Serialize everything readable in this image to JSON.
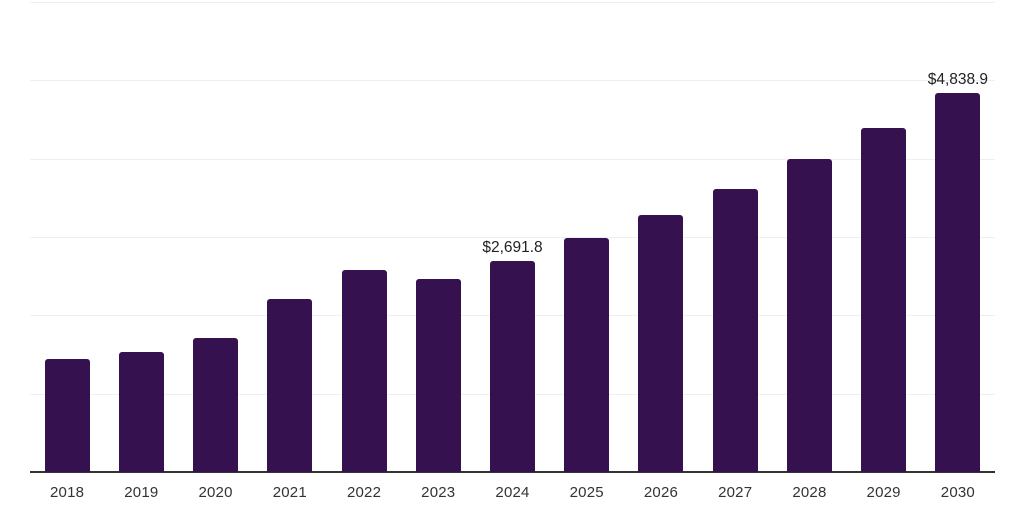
{
  "chart_data": {
    "type": "bar",
    "title": "",
    "xlabel": "",
    "ylabel": "",
    "categories": [
      "2018",
      "2019",
      "2020",
      "2021",
      "2022",
      "2023",
      "2024",
      "2025",
      "2026",
      "2027",
      "2028",
      "2029",
      "2030"
    ],
    "values": [
      1439,
      1528,
      1706,
      2203,
      2585,
      2458,
      2691.8,
      2993,
      3285,
      3616,
      3999,
      4393,
      4838.9
    ],
    "data_labels": [
      null,
      null,
      null,
      null,
      null,
      null,
      "$2,691.8",
      null,
      null,
      null,
      null,
      null,
      "$4,838.9"
    ],
    "ylim": [
      0,
      6000
    ],
    "gridline_step": 1000,
    "grid": "horizontal-only",
    "legend": "none",
    "y_tick_labels_shown": false,
    "bar_color": "#36114F",
    "gridline_color": "#efefef",
    "axis_color": "#333333",
    "x_label_color": "#333333",
    "data_label_color": "#222222"
  }
}
